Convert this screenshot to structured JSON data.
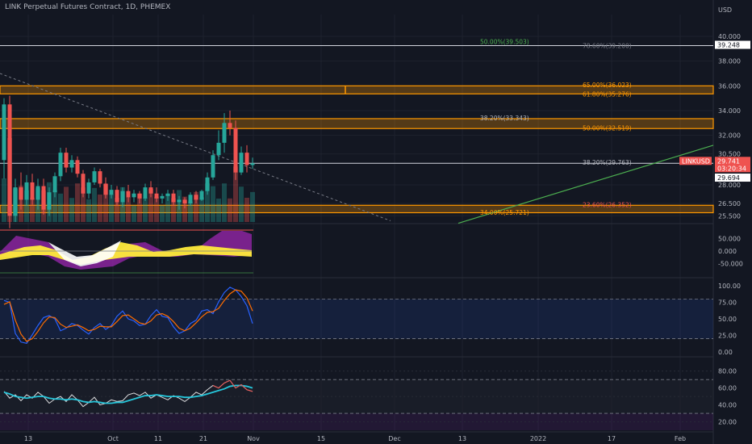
{
  "title": "LINK Perpetual Futures Contract, 1D, PHEMEX",
  "currency": "USD",
  "colors": {
    "background": "#131722",
    "grid": "#1e222d",
    "up": "#26a69a",
    "down": "#ef5350",
    "fib_zone": "#ff9800",
    "trendline": "#4caf50",
    "stoch_k": "#2962ff",
    "stoch_d": "#ff6d00",
    "rsi": "#ffffff",
    "rsi_ma": "#26c6da"
  },
  "chart_data": [
    {
      "type": "candlestick",
      "symbol": "LINKUSD",
      "price_axis": {
        "ticks": [
          "40.000",
          "38.000",
          "36.000",
          "34.000",
          "32.000",
          "30.500",
          "28.000",
          "26.500",
          "25.500"
        ],
        "ylim": [
          25.0,
          41.5
        ]
      },
      "time_axis": {
        "ticks": [
          "13",
          "Oct",
          "11",
          "21",
          "Nov",
          "15",
          "Dec",
          "13",
          "2022",
          "17",
          "Feb"
        ]
      },
      "price_labels": [
        {
          "text": "39.248",
          "value": 39.248,
          "style": "light"
        },
        {
          "text": "LINKUSD",
          "value": 29.741,
          "style": "red"
        },
        {
          "text": "29.741",
          "value": 29.741,
          "style": "red"
        },
        {
          "text": "03:20:34",
          "value": 29.741,
          "style": "red-sub"
        },
        {
          "text": "29.694",
          "value": 29.694,
          "style": "light-sub"
        }
      ],
      "horizontal_lines": [
        39.248,
        29.741
      ],
      "fib_zones": [
        {
          "from": 35.35,
          "to": 36.0
        },
        {
          "from": 32.55,
          "to": 33.35
        },
        {
          "from": 25.75,
          "to": 26.35
        }
      ],
      "fib_labels": [
        {
          "text": "50.00%(39.503)",
          "value": 39.503,
          "color": "#4caf50",
          "pos": "left"
        },
        {
          "text": "78.60%(39.200)",
          "value": 39.2,
          "color": "#787b86",
          "pos": "right"
        },
        {
          "text": "65.00%(36.023)",
          "value": 36.023,
          "color": "#ff9800",
          "pos": "right"
        },
        {
          "text": "61.80%(35.276)",
          "value": 35.276,
          "color": "#ff9800",
          "pos": "right"
        },
        {
          "text": "38.20%(33.343)",
          "value": 33.343,
          "color": "#b2b5be",
          "pos": "left"
        },
        {
          "text": "50.00%(32.519)",
          "value": 32.519,
          "color": "#ff9800",
          "pos": "right"
        },
        {
          "text": "38.20%(29.763)",
          "value": 29.763,
          "color": "#b2b5be",
          "pos": "right"
        },
        {
          "text": "23.60%(26.352)",
          "value": 26.352,
          "color": "#ef5350",
          "pos": "right"
        },
        {
          "text": "34.00%(25.721)",
          "value": 25.721,
          "color": "#ff9800",
          "pos": "left"
        }
      ],
      "trendline_up": {
        "from": [
          0,
          24.9
        ],
        "to": [
          1,
          31.2
        ]
      },
      "trendline_down": {
        "from": [
          0,
          37.0
        ],
        "to": [
          1,
          25.1
        ]
      },
      "candles": [
        [
          30.0,
          35.0,
          28.5,
          34.5
        ],
        [
          34.5,
          35.2,
          24.5,
          25.5
        ],
        [
          25.5,
          28.5,
          25.0,
          27.8
        ],
        [
          27.8,
          29.0,
          26.0,
          26.8
        ],
        [
          26.8,
          28.8,
          26.3,
          28.2
        ],
        [
          28.2,
          28.9,
          26.4,
          26.8
        ],
        [
          26.8,
          28.5,
          26.0,
          27.9
        ],
        [
          27.9,
          28.5,
          25.6,
          26.0
        ],
        [
          26.0,
          27.8,
          25.5,
          27.4
        ],
        [
          27.4,
          29.0,
          27.0,
          28.7
        ],
        [
          28.7,
          31.0,
          28.3,
          30.6
        ],
        [
          30.6,
          31.0,
          29.0,
          29.4
        ],
        [
          29.4,
          30.4,
          29.0,
          30.0
        ],
        [
          30.0,
          30.3,
          28.6,
          28.9
        ],
        [
          28.9,
          29.2,
          27.0,
          27.3
        ],
        [
          27.3,
          28.5,
          26.9,
          28.2
        ],
        [
          28.2,
          29.4,
          28.0,
          29.1
        ],
        [
          29.1,
          29.3,
          27.8,
          28.1
        ],
        [
          28.1,
          28.6,
          26.9,
          27.2
        ],
        [
          27.2,
          28.0,
          26.9,
          27.6
        ],
        [
          27.6,
          27.9,
          26.3,
          26.6
        ],
        [
          26.6,
          27.8,
          26.2,
          27.5
        ],
        [
          27.5,
          28.0,
          26.6,
          27.0
        ],
        [
          27.0,
          27.6,
          26.6,
          27.3
        ],
        [
          27.3,
          27.5,
          26.5,
          26.9
        ],
        [
          26.9,
          28.1,
          26.7,
          27.8
        ],
        [
          27.8,
          28.3,
          27.0,
          27.3
        ],
        [
          27.3,
          27.8,
          26.6,
          26.9
        ],
        [
          26.9,
          27.3,
          26.5,
          27.1
        ],
        [
          27.1,
          27.6,
          26.7,
          27.3
        ],
        [
          27.3,
          27.6,
          26.3,
          26.6
        ],
        [
          26.6,
          27.1,
          26.0,
          26.8
        ],
        [
          26.8,
          27.0,
          26.1,
          26.5
        ],
        [
          26.5,
          27.4,
          26.3,
          27.2
        ],
        [
          27.2,
          27.5,
          26.5,
          26.8
        ],
        [
          26.8,
          27.6,
          26.7,
          27.5
        ],
        [
          27.5,
          29.0,
          27.2,
          28.6
        ],
        [
          28.6,
          30.8,
          28.4,
          30.4
        ],
        [
          30.4,
          32.4,
          30.0,
          31.4
        ],
        [
          31.4,
          33.8,
          30.6,
          33.0
        ],
        [
          33.0,
          34.0,
          32.0,
          32.6
        ],
        [
          32.6,
          33.2,
          28.4,
          29.0
        ],
        [
          29.0,
          31.1,
          28.8,
          30.6
        ],
        [
          30.6,
          31.2,
          29.0,
          29.6
        ],
        [
          29.6,
          30.2,
          29.3,
          29.74
        ]
      ]
    },
    {
      "type": "area",
      "name": "momentum",
      "axis_ticks": [
        "50.000",
        "0.000",
        "-50.000"
      ],
      "ylim": [
        -100,
        100
      ]
    },
    {
      "type": "line",
      "name": "stochastic",
      "axis_ticks": [
        "100.00",
        "75.00",
        "50.00",
        "25.00",
        "0.00"
      ],
      "ylim": [
        -5,
        110
      ],
      "bands": [
        80,
        20
      ],
      "series": [
        {
          "values": [
            78,
            75,
            28,
            15,
            13,
            26,
            40,
            52,
            55,
            50,
            32,
            36,
            43,
            40,
            33,
            27,
            37,
            43,
            34,
            40,
            54,
            62,
            50,
            47,
            40,
            42,
            55,
            64,
            54,
            52,
            38,
            28,
            32,
            43,
            48,
            62,
            64,
            58,
            76,
            90,
            98,
            94,
            84,
            70,
            43
          ]
        },
        {
          "values": [
            72,
            76,
            48,
            27,
            16,
            20,
            31,
            44,
            53,
            52,
            42,
            37,
            39,
            41,
            37,
            32,
            34,
            39,
            38,
            38,
            46,
            55,
            56,
            50,
            44,
            42,
            47,
            56,
            58,
            54,
            46,
            36,
            32,
            36,
            44,
            53,
            60,
            61,
            66,
            78,
            88,
            94,
            92,
            82,
            62
          ]
        }
      ]
    },
    {
      "type": "line",
      "name": "rsi",
      "axis_ticks": [
        "80.00",
        "60.00",
        "40.00",
        "20.00"
      ],
      "ylim": [
        10,
        95
      ],
      "bands": [
        70,
        30
      ],
      "series": [
        {
          "values": [
            56,
            48,
            52,
            45,
            52,
            48,
            55,
            50,
            42,
            47,
            50,
            44,
            52,
            46,
            38,
            43,
            49,
            40,
            42,
            46,
            44,
            45,
            52,
            54,
            51,
            55,
            48,
            52,
            49,
            46,
            51,
            48,
            44,
            49,
            55,
            52,
            58,
            63,
            60,
            66,
            69,
            60,
            64,
            58,
            56
          ]
        },
        {
          "values": [
            55,
            53,
            50,
            49,
            48,
            49,
            50,
            50,
            48,
            47,
            47,
            46,
            47,
            46,
            44,
            43,
            44,
            43,
            42,
            42,
            43,
            43,
            45,
            47,
            49,
            51,
            51,
            52,
            51,
            50,
            50,
            50,
            49,
            49,
            50,
            51,
            53,
            55,
            57,
            59,
            62,
            63,
            63,
            62,
            60
          ]
        }
      ]
    }
  ]
}
